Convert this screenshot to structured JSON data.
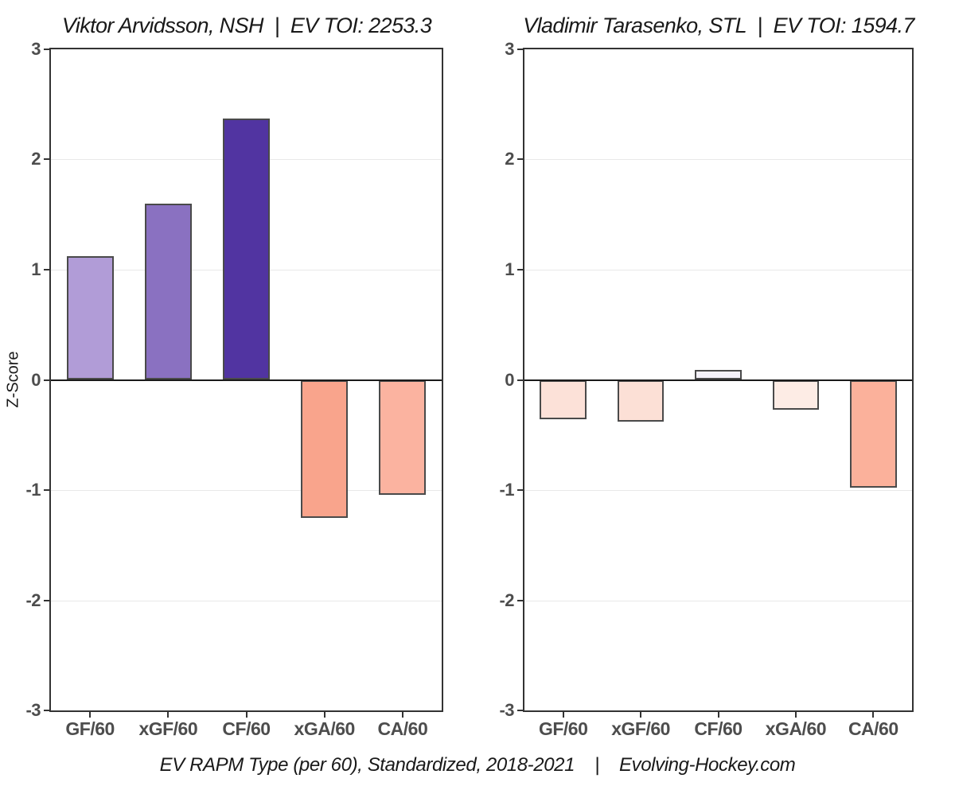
{
  "figure": {
    "caption": "EV RAPM Type (per 60), Standardized, 2018-2021    |    Evolving-Hockey.com"
  },
  "chart_data": [
    {
      "type": "bar",
      "title": "Viktor Arvidsson, NSH  |  EV TOI: 2253.3",
      "player": "Viktor Arvidsson",
      "team": "NSH",
      "ev_toi": "2253.3",
      "ylabel": "Z-Score",
      "categories": [
        "GF/60",
        "xGF/60",
        "CF/60",
        "xGA/60",
        "CA/60"
      ],
      "values": [
        1.12,
        1.6,
        2.37,
        -1.25,
        -1.04
      ],
      "bar_colors": [
        "#b19cd7",
        "#8a71c1",
        "#5134a1",
        "#f9a48c",
        "#fbb3a0"
      ],
      "ylim": [
        -3,
        3
      ],
      "yticks": [
        3,
        2,
        1,
        0,
        -1,
        -2,
        -3
      ],
      "grid": true,
      "legend": "none"
    },
    {
      "type": "bar",
      "title": "Vladimir Tarasenko, STL  |  EV TOI: 1594.7",
      "player": "Vladimir Tarasenko",
      "team": "STL",
      "ev_toi": "1594.7",
      "ylabel": "",
      "categories": [
        "GF/60",
        "xGF/60",
        "CF/60",
        "xGA/60",
        "CA/60"
      ],
      "values": [
        -0.36,
        -0.38,
        0.09,
        -0.27,
        -0.98
      ],
      "bar_colors": [
        "#fce1d8",
        "#fce0d6",
        "#f4f1f9",
        "#fdece5",
        "#fbb19b"
      ],
      "ylim": [
        -3,
        3
      ],
      "yticks": [
        3,
        2,
        1,
        0,
        -1,
        -2,
        -3
      ],
      "grid": true,
      "legend": "none"
    }
  ],
  "style": {
    "zero_line_color": "#1a1a1a",
    "grid_color": "#e8e8e8",
    "axis_frame_color": "#333333",
    "bar_border_color": "#4a4a4a",
    "tick_label_color": "#4d4d4d",
    "title_color": "#191919"
  }
}
